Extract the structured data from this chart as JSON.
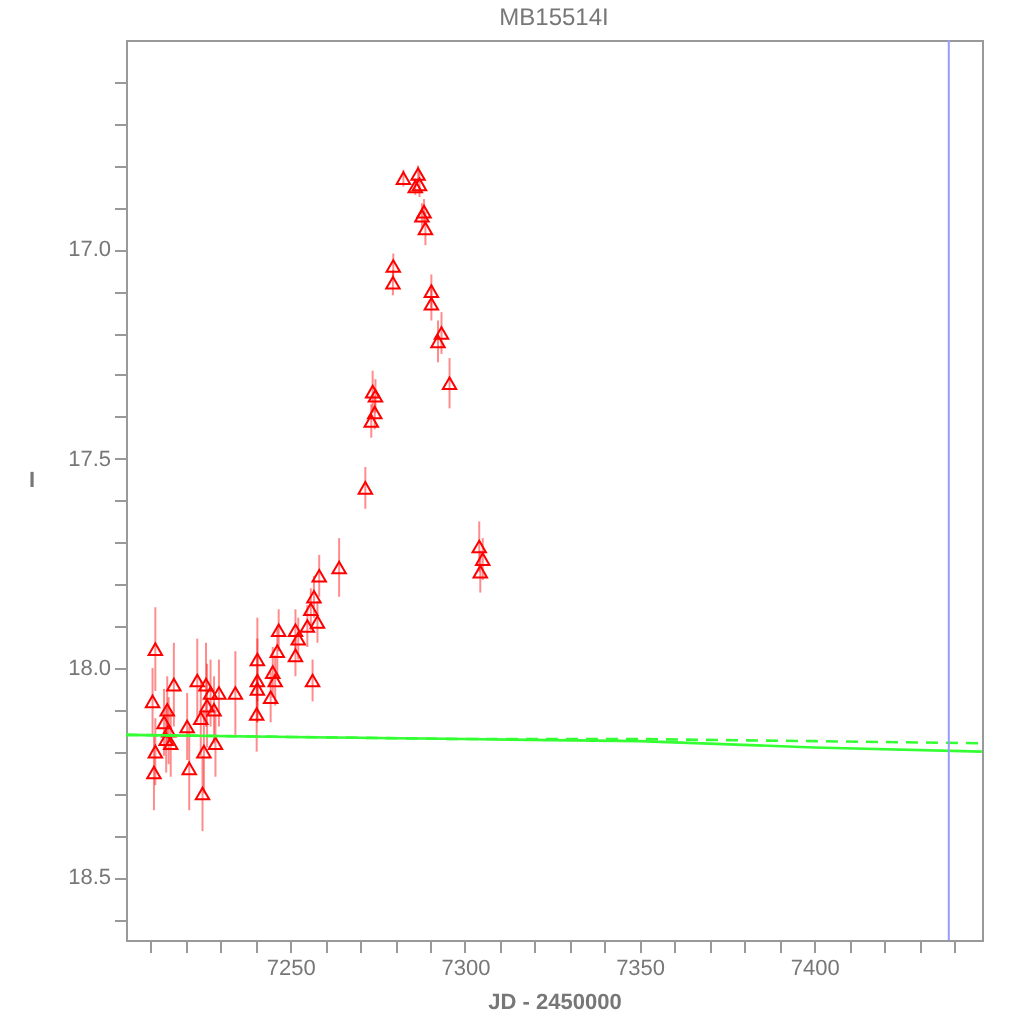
{
  "chart_data": {
    "type": "scatter",
    "title": "MB15514I",
    "xlabel": "JD - 2450000",
    "ylabel": "I",
    "xlim": [
      7203,
      7448
    ],
    "xticks": [
      {
        "value": 7210,
        "label": null
      },
      {
        "value": 7220,
        "label": null
      },
      {
        "value": 7230,
        "label": null
      },
      {
        "value": 7240,
        "label": null
      },
      7250,
      {
        "value": 7260,
        "label": null
      },
      {
        "value": 7270,
        "label": null
      },
      {
        "value": 7280,
        "label": null
      },
      {
        "value": 7290,
        "label": null
      },
      7300,
      {
        "value": 7310,
        "label": null
      },
      {
        "value": 7320,
        "label": null
      },
      {
        "value": 7330,
        "label": null
      },
      {
        "value": 7340,
        "label": null
      },
      7350,
      {
        "value": 7360,
        "label": null
      },
      {
        "value": 7370,
        "label": null
      },
      {
        "value": 7380,
        "label": null
      },
      {
        "value": 7390,
        "label": null
      },
      7400,
      {
        "value": 7410,
        "label": null
      },
      {
        "value": 7420,
        "label": null
      },
      {
        "value": 7430,
        "label": null
      },
      {
        "value": 7440,
        "label": null
      }
    ],
    "ylim": [
      18.65,
      16.5
    ],
    "yticks": [
      {
        "value": 16.6,
        "label": null
      },
      {
        "value": 16.7,
        "label": null
      },
      {
        "value": 16.8,
        "label": null
      },
      {
        "value": 16.9,
        "label": null
      },
      {
        "value": 17,
        "label": "17.0"
      },
      {
        "value": 17.1,
        "label": null
      },
      {
        "value": 17.2,
        "label": null
      },
      {
        "value": 17.3,
        "label": null
      },
      {
        "value": 17.4,
        "label": null
      },
      {
        "value": 17.5,
        "label": "17.5"
      },
      {
        "value": 17.6,
        "label": null
      },
      {
        "value": 17.7,
        "label": null
      },
      {
        "value": 17.8,
        "label": null
      },
      {
        "value": 17.9,
        "label": null
      },
      {
        "value": 18,
        "label": "18.0"
      },
      {
        "value": 18.1,
        "label": null
      },
      {
        "value": 18.2,
        "label": null
      },
      {
        "value": 18.3,
        "label": null
      },
      {
        "value": 18.4,
        "label": null
      },
      {
        "value": 18.5,
        "label": "18.5"
      },
      {
        "value": 18.6,
        "label": null
      }
    ],
    "grid": false,
    "ref_lines": [
      {
        "axis": "x",
        "value": 7438.5,
        "color": "#9999ff"
      }
    ],
    "series": [
      {
        "type": "scatter",
        "color": "#ff0000",
        "marker": "triangle",
        "x": [
          7282.4,
          7286.6,
          7287,
          7285.8,
          7288.3,
          7287.7,
          7288.7,
          7279.5,
          7279.4,
          7290.4,
          7290.4,
          7293.3,
          7292.3,
          7295.6,
          7273.6,
          7274.4,
          7274.2,
          7273.2,
          7271.5,
          7304.1,
          7305.1,
          7304.4,
          7211.4,
          7210.6,
          7214.8,
          7213.9,
          7215.2,
          7214.5,
          7215.8,
          7211.4,
          7211,
          7216.7,
          7220.5,
          7221.1,
          7223.4,
          7224.4,
          7225.9,
          7226.2,
          7225.3,
          7224.9,
          7227.2,
          7228.2,
          7228.6,
          7229.6,
          7234.3,
          7240.6,
          7240.6,
          7240.4,
          7240.6,
          7245,
          7245.7,
          7244.4,
          7246.7,
          7246.3,
          7251.5,
          7251.5,
          7252.3,
          7254.9,
          7255.9,
          7256.8,
          7257.8,
          7256.4,
          7258.3,
          7264
        ],
        "values": [
          16.83,
          16.82,
          16.845,
          16.85,
          16.91,
          16.92,
          16.95,
          17.04,
          17.08,
          17.1,
          17.13,
          17.2,
          17.22,
          17.32,
          17.34,
          17.35,
          17.39,
          17.41,
          17.57,
          17.71,
          17.74,
          17.77,
          17.955,
          18.08,
          18.1,
          18.13,
          18.15,
          18.17,
          18.18,
          18.2,
          18.25,
          18.04,
          18.14,
          18.24,
          18.03,
          18.12,
          18.04,
          18.09,
          18.2,
          18.3,
          18.06,
          18.1,
          18.18,
          18.06,
          18.06,
          17.98,
          18.03,
          18.11,
          18.05,
          18.01,
          18.03,
          18.07,
          17.91,
          17.96,
          17.91,
          17.97,
          17.93,
          17.9,
          17.86,
          17.83,
          17.89,
          18.03,
          17.78,
          17.76
        ],
        "errors": [
          0.02,
          0.02,
          0.03,
          0.02,
          0.03,
          0.03,
          0.04,
          0.03,
          0.03,
          0.04,
          0.04,
          0.05,
          0.05,
          0.06,
          0.05,
          0.04,
          0.04,
          0.04,
          0.05,
          0.06,
          0.05,
          0.05,
          0.1,
          0.08,
          0.08,
          0.08,
          0.08,
          0.08,
          0.08,
          0.08,
          0.09,
          0.1,
          0.08,
          0.1,
          0.1,
          0.09,
          0.1,
          0.1,
          0.1,
          0.09,
          0.08,
          0.08,
          0.08,
          0.08,
          0.1,
          0.1,
          0.1,
          0.09,
          0.08,
          0.06,
          0.06,
          0.06,
          0.05,
          0.06,
          0.05,
          0.05,
          0.05,
          0.05,
          0.05,
          0.05,
          0.05,
          0.05,
          0.05,
          0.07
        ]
      },
      {
        "type": "line",
        "color": "#33ff33",
        "line_style": "solid",
        "x": [
          7203,
          7250,
          7300,
          7350,
          7400,
          7448
        ],
        "values": [
          18.16,
          18.165,
          18.17,
          18.175,
          18.19,
          18.2
        ]
      },
      {
        "type": "line",
        "color": "#33ff33",
        "line_style": "dashed",
        "x": [
          7203,
          7250,
          7300,
          7350,
          7400,
          7448
        ],
        "values": [
          18.16,
          18.165,
          18.17,
          18.17,
          18.175,
          18.18
        ]
      }
    ]
  }
}
